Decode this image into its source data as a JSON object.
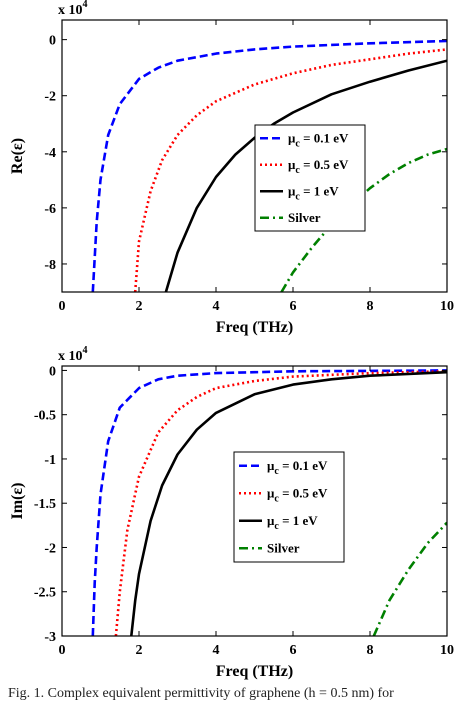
{
  "caption": "Fig. 1.   Complex equivalent permittivity of graphene (h = 0.5 nm) for",
  "chart_data": [
    {
      "type": "line",
      "id": "re",
      "title": "",
      "xlabel": "Freq (THz)",
      "ylabel": "Re(ε)",
      "multiplier_label": "x 10",
      "multiplier_exp": "4",
      "xlim": [
        0,
        10
      ],
      "ylim": [
        -9,
        0.7
      ],
      "xticks": [
        0,
        2,
        4,
        6,
        8,
        10
      ],
      "xtick_labels": [
        "0",
        "2",
        "4",
        "6",
        "8",
        "10"
      ],
      "yticks": [
        0,
        -2,
        -4,
        -6,
        -8
      ],
      "ytick_labels": [
        "0",
        "-2",
        "-4",
        "-6",
        "-8"
      ],
      "grid": false,
      "legend_position": "center-right",
      "series": [
        {
          "label_main": "μ",
          "label_sub": "c",
          "label_rest": " = 0.1 eV",
          "color": "#0000ff",
          "dash": "dashed",
          "x": [
            0.8,
            0.9,
            1.0,
            1.2,
            1.5,
            2.0,
            2.5,
            3.0,
            4.0,
            5.0,
            6.0,
            8.0,
            10.0
          ],
          "y": [
            -9.0,
            -6.5,
            -5.0,
            -3.4,
            -2.3,
            -1.4,
            -1.0,
            -0.75,
            -0.5,
            -0.35,
            -0.25,
            -0.13,
            -0.05
          ]
        },
        {
          "label_main": "μ",
          "label_sub": "c",
          "label_rest": " = 0.5 eV",
          "color": "#ff0000",
          "dash": "dotted",
          "x": [
            1.9,
            2.0,
            2.3,
            2.6,
            3.0,
            3.5,
            4.0,
            5.0,
            6.0,
            7.0,
            8.0,
            9.0,
            10.0
          ],
          "y": [
            -9.0,
            -7.2,
            -5.4,
            -4.3,
            -3.4,
            -2.7,
            -2.2,
            -1.6,
            -1.2,
            -0.9,
            -0.7,
            -0.5,
            -0.35
          ]
        },
        {
          "label_main": "μ",
          "label_sub": "c",
          "label_rest": " = 1 eV",
          "color": "#000000",
          "dash": "solid",
          "x": [
            2.7,
            3.0,
            3.5,
            4.0,
            4.5,
            5.0,
            5.5,
            6.0,
            7.0,
            8.0,
            9.0,
            10.0
          ],
          "y": [
            -9.0,
            -7.6,
            -6.0,
            -4.9,
            -4.1,
            -3.5,
            -3.0,
            -2.6,
            -1.95,
            -1.5,
            -1.1,
            -0.75
          ]
        },
        {
          "label_main": "Silver",
          "label_sub": "",
          "label_rest": "",
          "color": "#008000",
          "dash": "dashdot",
          "x": [
            5.7,
            6.0,
            6.5,
            7.0,
            7.5,
            8.0,
            8.5,
            9.0,
            9.5,
            10.0
          ],
          "y": [
            -9.0,
            -8.3,
            -7.4,
            -6.6,
            -5.9,
            -5.3,
            -4.8,
            -4.4,
            -4.1,
            -3.9
          ]
        }
      ]
    },
    {
      "type": "line",
      "id": "im",
      "title": "",
      "xlabel": "Freq (THz)",
      "ylabel": "Im(ε)",
      "multiplier_label": "x 10",
      "multiplier_exp": "4",
      "xlim": [
        0,
        10
      ],
      "ylim": [
        -3,
        0.05
      ],
      "xticks": [
        0,
        2,
        4,
        6,
        8,
        10
      ],
      "xtick_labels": [
        "0",
        "2",
        "4",
        "6",
        "8",
        "10"
      ],
      "yticks": [
        0,
        -0.5,
        -1,
        -1.5,
        -2,
        -2.5,
        -3
      ],
      "ytick_labels": [
        "0",
        "-0.5",
        "-1",
        "-1.5",
        "-2",
        "-2.5",
        "-3"
      ],
      "grid": false,
      "legend_position": "center-right",
      "series": [
        {
          "label_main": "μ",
          "label_sub": "c",
          "label_rest": " = 0.1 eV",
          "color": "#0000ff",
          "dash": "dashed",
          "x": [
            0.8,
            0.85,
            0.9,
            1.0,
            1.2,
            1.5,
            2.0,
            2.5,
            3.0,
            4.0,
            5.0,
            6.0,
            8.0,
            10.0
          ],
          "y": [
            -3.0,
            -2.4,
            -2.0,
            -1.4,
            -0.8,
            -0.42,
            -0.2,
            -0.1,
            -0.06,
            -0.03,
            -0.02,
            -0.01,
            -0.005,
            0.0
          ]
        },
        {
          "label_main": "μ",
          "label_sub": "c",
          "label_rest": " = 0.5 eV",
          "color": "#ff0000",
          "dash": "dotted",
          "x": [
            1.4,
            1.5,
            1.7,
            2.0,
            2.5,
            3.0,
            3.5,
            4.0,
            5.0,
            6.0,
            8.0,
            10.0
          ],
          "y": [
            -3.0,
            -2.5,
            -1.8,
            -1.2,
            -0.7,
            -0.45,
            -0.3,
            -0.2,
            -0.12,
            -0.07,
            -0.03,
            -0.01
          ]
        },
        {
          "label_main": "μ",
          "label_sub": "c",
          "label_rest": " = 1 eV",
          "color": "#000000",
          "dash": "solid",
          "x": [
            1.8,
            1.9,
            2.0,
            2.3,
            2.6,
            3.0,
            3.5,
            4.0,
            5.0,
            6.0,
            7.0,
            8.0,
            10.0
          ],
          "y": [
            -3.0,
            -2.6,
            -2.3,
            -1.7,
            -1.3,
            -0.95,
            -0.67,
            -0.48,
            -0.27,
            -0.16,
            -0.1,
            -0.06,
            -0.02
          ]
        },
        {
          "label_main": "Silver",
          "label_sub": "",
          "label_rest": "",
          "color": "#008000",
          "dash": "dashdot",
          "x": [
            8.1,
            8.5,
            9.0,
            9.5,
            10.0
          ],
          "y": [
            -3.0,
            -2.6,
            -2.25,
            -1.95,
            -1.72
          ]
        }
      ]
    }
  ]
}
